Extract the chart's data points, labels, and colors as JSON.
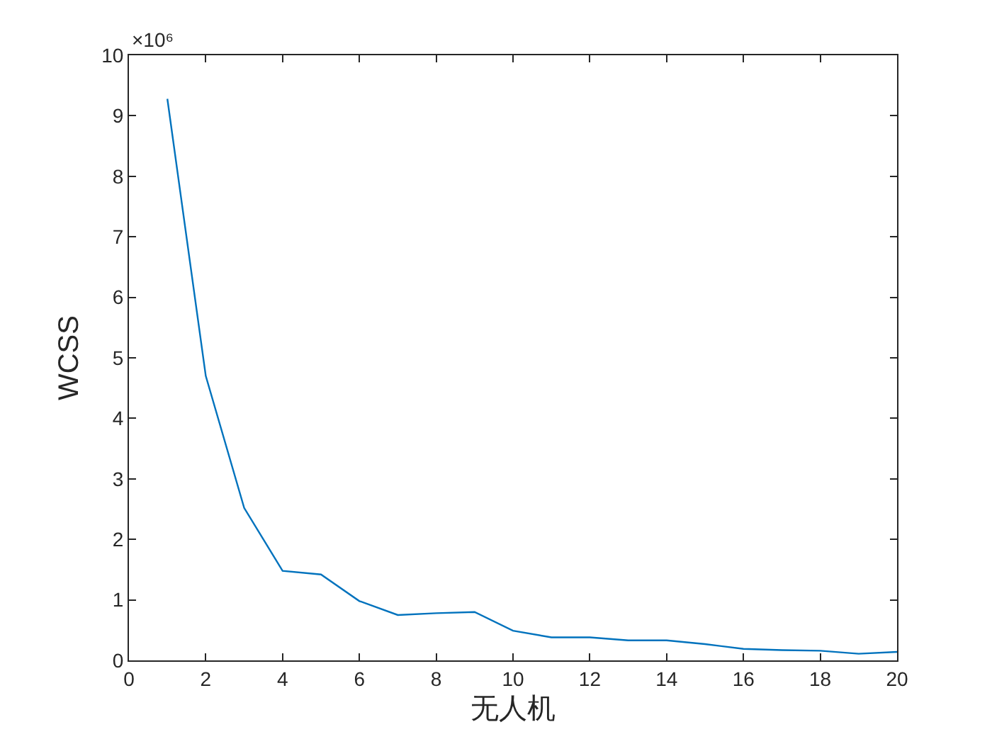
{
  "chart_data": {
    "type": "line",
    "xlabel": "无人机",
    "ylabel": "WCSS",
    "annotations": [
      "×10⁶"
    ],
    "x": [
      1,
      2,
      3,
      4,
      5,
      6,
      7,
      8,
      9,
      10,
      11,
      12,
      13,
      14,
      15,
      16,
      17,
      18,
      19,
      20
    ],
    "series": [
      {
        "color": "#0072bd",
        "values": [
          9.28,
          4.7,
          2.52,
          1.48,
          1.42,
          0.98,
          0.75,
          0.78,
          0.8,
          0.49,
          0.38,
          0.38,
          0.33,
          0.33,
          0.27,
          0.19,
          0.17,
          0.16,
          0.11,
          0.14
        ]
      }
    ],
    "xlim": [
      0,
      20
    ],
    "xticks": [
      0,
      2,
      4,
      6,
      8,
      10,
      12,
      14,
      16,
      18,
      20
    ],
    "ylim": [
      0,
      10
    ],
    "yticks": [
      0,
      1,
      2,
      3,
      4,
      5,
      6,
      7,
      8,
      9,
      10
    ]
  }
}
